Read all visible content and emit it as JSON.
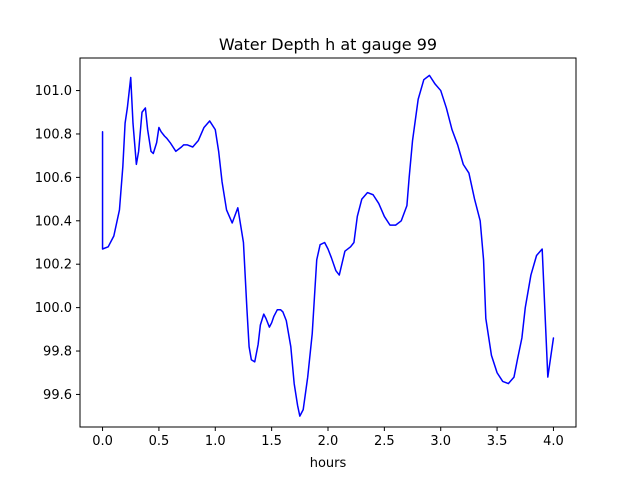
{
  "chart_data": {
    "type": "line",
    "title": "Water Depth h at gauge 99",
    "xlabel": "hours",
    "ylabel": "",
    "xlim": [
      -0.2,
      4.2
    ],
    "ylim": [
      99.45,
      101.15
    ],
    "xticks": [
      0.0,
      0.5,
      1.0,
      1.5,
      2.0,
      2.5,
      3.0,
      3.5,
      4.0
    ],
    "xtick_labels": [
      "0.0",
      "0.5",
      "1.0",
      "1.5",
      "2.0",
      "2.5",
      "3.0",
      "3.5",
      "4.0"
    ],
    "yticks": [
      99.6,
      99.8,
      100.0,
      100.2,
      100.4,
      100.6,
      100.8,
      101.0
    ],
    "ytick_labels": [
      "99.6",
      "99.8",
      "100.0",
      "100.2",
      "100.4",
      "100.6",
      "100.8",
      "101.0"
    ],
    "grid": false,
    "legend": "none",
    "series": [
      {
        "color": "#0000ff",
        "x": [
          0.0,
          0.0,
          0.05,
          0.1,
          0.15,
          0.18,
          0.2,
          0.22,
          0.25,
          0.27,
          0.3,
          0.32,
          0.35,
          0.38,
          0.4,
          0.43,
          0.45,
          0.48,
          0.5,
          0.52,
          0.55,
          0.57,
          0.6,
          0.65,
          0.7,
          0.72,
          0.75,
          0.8,
          0.85,
          0.9,
          0.95,
          1.0,
          1.03,
          1.06,
          1.1,
          1.15,
          1.2,
          1.25,
          1.28,
          1.3,
          1.32,
          1.35,
          1.38,
          1.4,
          1.43,
          1.45,
          1.48,
          1.5,
          1.52,
          1.55,
          1.58,
          1.6,
          1.63,
          1.67,
          1.7,
          1.73,
          1.75,
          1.78,
          1.82,
          1.86,
          1.88,
          1.9,
          1.93,
          1.97,
          2.0,
          2.03,
          2.07,
          2.1,
          2.15,
          2.2,
          2.23,
          2.26,
          2.3,
          2.35,
          2.4,
          2.45,
          2.5,
          2.55,
          2.6,
          2.65,
          2.7,
          2.72,
          2.75,
          2.8,
          2.85,
          2.9,
          2.95,
          3.0,
          3.05,
          3.1,
          3.15,
          3.2,
          3.25,
          3.3,
          3.35,
          3.38,
          3.4,
          3.45,
          3.5,
          3.55,
          3.6,
          3.65,
          3.68,
          3.72,
          3.75,
          3.8,
          3.85,
          3.9,
          3.95,
          4.0
        ],
        "y": [
          100.81,
          100.27,
          100.28,
          100.33,
          100.45,
          100.65,
          100.85,
          100.92,
          101.06,
          100.85,
          100.66,
          100.72,
          100.9,
          100.92,
          100.82,
          100.72,
          100.71,
          100.76,
          100.83,
          100.81,
          100.79,
          100.78,
          100.76,
          100.72,
          100.74,
          100.75,
          100.75,
          100.74,
          100.77,
          100.83,
          100.86,
          100.82,
          100.72,
          100.58,
          100.45,
          100.39,
          100.46,
          100.3,
          100.0,
          99.82,
          99.76,
          99.75,
          99.83,
          99.92,
          99.97,
          99.95,
          99.91,
          99.93,
          99.96,
          99.99,
          99.99,
          99.98,
          99.94,
          99.82,
          99.65,
          99.55,
          99.5,
          99.53,
          99.68,
          99.88,
          100.05,
          100.22,
          100.29,
          100.3,
          100.27,
          100.23,
          100.17,
          100.15,
          100.26,
          100.28,
          100.3,
          100.42,
          100.5,
          100.53,
          100.52,
          100.48,
          100.42,
          100.38,
          100.38,
          100.4,
          100.47,
          100.6,
          100.77,
          100.96,
          101.05,
          101.07,
          101.03,
          101.0,
          100.92,
          100.82,
          100.75,
          100.66,
          100.62,
          100.5,
          100.4,
          100.22,
          99.95,
          99.78,
          99.7,
          99.66,
          99.65,
          99.68,
          99.76,
          99.86,
          100.0,
          100.15,
          100.24,
          100.27,
          99.68,
          99.86
        ]
      }
    ]
  }
}
